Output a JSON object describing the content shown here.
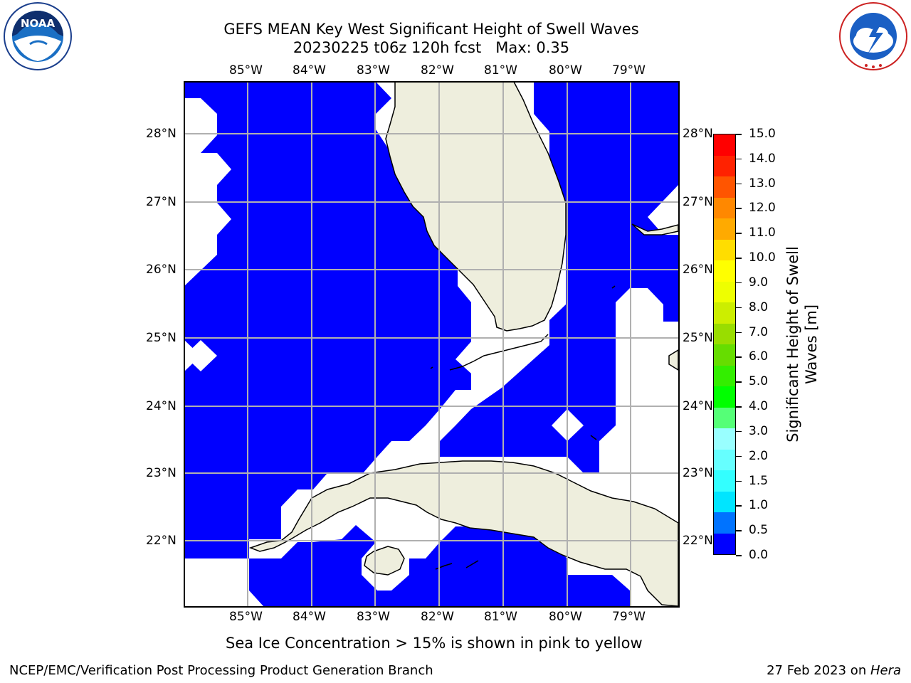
{
  "logos": {
    "noaa": {
      "text": "NOAA",
      "ring_text": "NATIONAL OCEANIC AND ATMOSPHERIC ADMINISTRATION · U.S. DEPARTMENT OF COMMERCE",
      "icon": "noaa-logo"
    },
    "nws": {
      "ring_text": "NATIONAL WEATHER SERVICE",
      "icon": "nws-logo"
    }
  },
  "title": {
    "line1": "GEFS MEAN Key West Significant Height of Swell Waves",
    "line2": "20230225 t06z 120h fcst   Max: 0.35"
  },
  "map": {
    "lon_labels_top": [
      "85°W",
      "84°W",
      "83°W",
      "82°W",
      "81°W",
      "80°W",
      "79°W"
    ],
    "lon_labels_bottom": [
      "85°W",
      "84°W",
      "83°W",
      "82°W",
      "81°W",
      "80°W",
      "79°W"
    ],
    "lat_labels_left": [
      "28°N",
      "27°N",
      "26°N",
      "25°N",
      "24°N",
      "23°N",
      "22°N"
    ],
    "lat_labels_right": [
      "28°N",
      "27°N",
      "26°N",
      "25°N",
      "24°N",
      "23°N",
      "22°N"
    ],
    "colors": {
      "swell": "#0000ff",
      "land": "#eeeedd",
      "grid": "#b0b0b0",
      "no_data": "#ffffff"
    }
  },
  "colorbar": {
    "label_line1": "Significant Height of Swell",
    "label_line2": "Waves [m]",
    "ticks": [
      "15.0",
      "14.0",
      "13.0",
      "12.0",
      "11.0",
      "10.0",
      "9.0",
      "8.0",
      "7.0",
      "6.0",
      "5.0",
      "4.0",
      "3.0",
      "2.0",
      "1.5",
      "1.0",
      "0.5",
      "0.0"
    ],
    "colors_bottom_to_top": [
      "#0000ff",
      "#0073ff",
      "#00e5ff",
      "#33ffff",
      "#66ffff",
      "#99ffff",
      "#55ff77",
      "#00ff00",
      "#33ee00",
      "#66dd00",
      "#99dd00",
      "#ccee00",
      "#eeff00",
      "#ffff00",
      "#ffdd00",
      "#ffaa00",
      "#ff8800",
      "#ff5500",
      "#ff2200",
      "#ff0000"
    ]
  },
  "caption": "Sea Ice Concentration > 15% is shown in pink to yellow",
  "footer": {
    "left": "NCEP/EMC/Verification Post Processing Product Generation Branch",
    "right_prefix": "27 Feb 2023 on ",
    "right_host": "Hera"
  }
}
